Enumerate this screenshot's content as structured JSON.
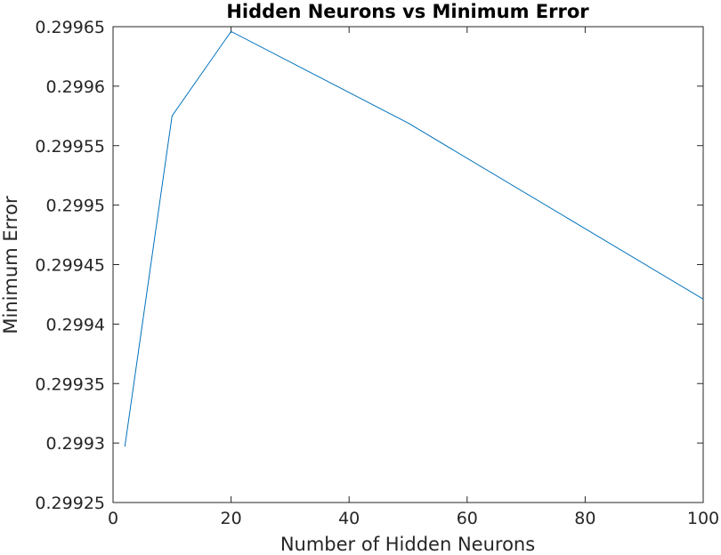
{
  "chart_data": {
    "type": "line",
    "title": "Hidden Neurons vs Minimum Error",
    "xlabel": "Number of Hidden Neurons",
    "ylabel": "Minimum Error",
    "xlim": [
      0,
      100
    ],
    "ylim": [
      0.29925,
      0.29965
    ],
    "xticks": [
      "0",
      "20",
      "40",
      "60",
      "80",
      "100"
    ],
    "yticks": [
      "0.29925",
      "0.2993",
      "0.29935",
      "0.2994",
      "0.29945",
      "0.2995",
      "0.29955",
      "0.2996",
      "0.29965"
    ],
    "grid": false,
    "series": [
      {
        "color": "#0072bd",
        "x": [
          2,
          10,
          20,
          50,
          100
        ],
        "y": [
          0.299297,
          0.299575,
          0.299646,
          0.299569,
          0.299421
        ]
      }
    ]
  }
}
